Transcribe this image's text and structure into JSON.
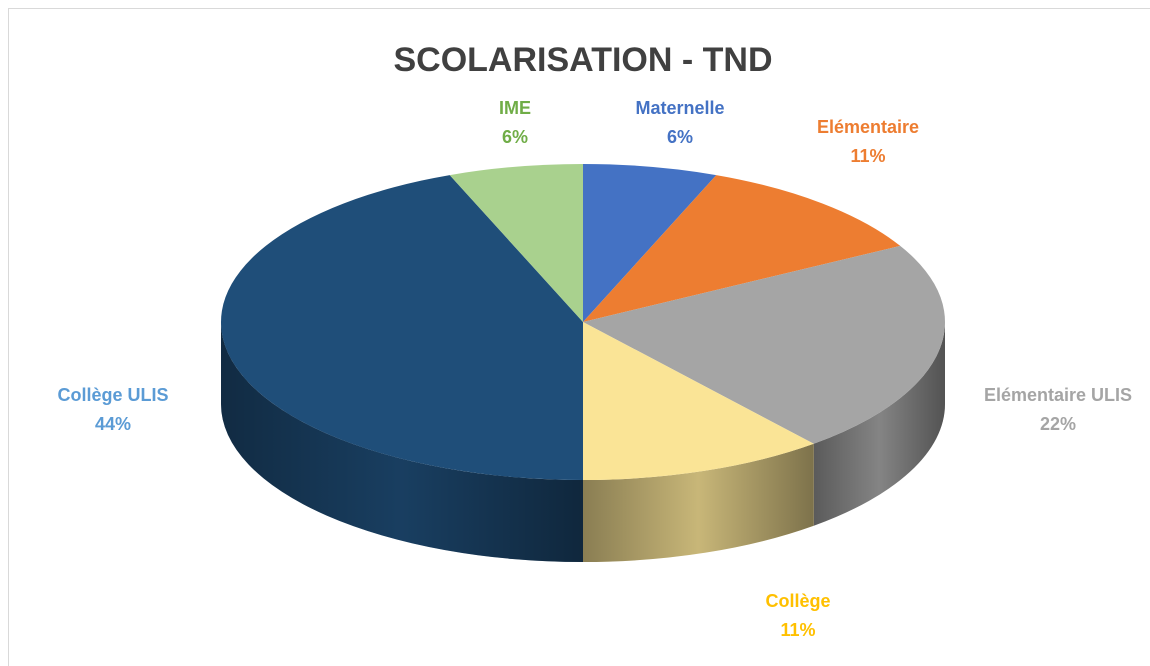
{
  "chart_data": {
    "type": "pie",
    "title": "SCOLARISATION - TND",
    "categories": [
      "Maternelle",
      "Elémentaire",
      "Elémentaire ULIS",
      "Collège",
      "Collège ULIS",
      "IME"
    ],
    "values": [
      6,
      11,
      22,
      11,
      44,
      6
    ],
    "value_labels": [
      "6%",
      "11%",
      "22%",
      "11%",
      "44%",
      "6%"
    ],
    "colors": [
      "#4472c4",
      "#ed7d31",
      "#a5a5a5",
      "#fae496",
      "#1f4e79",
      "#a9d18e"
    ],
    "label_colors": [
      "#4472c4",
      "#ed7d31",
      "#a5a5a5",
      "#ffc000",
      "#5b9bd5",
      "#70ad47"
    ]
  }
}
